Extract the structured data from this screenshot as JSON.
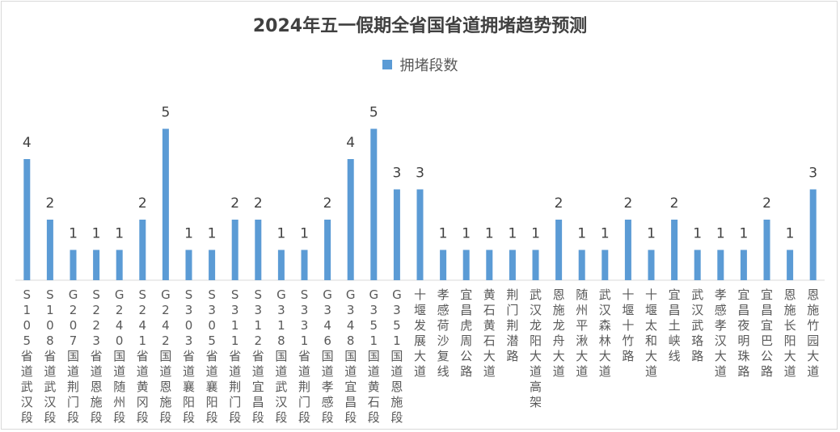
{
  "chart_data": {
    "type": "bar",
    "title": "2024年五一假期全省国省道拥堵趋势预测",
    "legend_position": "top",
    "grid": false,
    "ylim": [
      0,
      5.5
    ],
    "colors": {
      "bar": "#5b9bd5",
      "axis": "#d9d9d9",
      "label": "#404040",
      "tick": "#595959"
    },
    "categories": [
      "S105省道武汉段",
      "S108省道武汉段",
      "G207国道荆门段",
      "S223省道恩施段",
      "G240国道随州段",
      "S241省道黄冈段",
      "G242国道恩施段",
      "S303省道襄阳段",
      "S305省道襄阳段",
      "S311省道荆门段",
      "S312省道宜昌段",
      "G318国道武汉段",
      "S331省道荆门段",
      "G346国道孝感段",
      "G348国道宜昌段",
      "G351国道黄石段",
      "G351国道恩施段",
      "十堰发展大道",
      "孝感荷沙复线",
      "宜昌虎周公路",
      "黄石黄石大道",
      "荆门荆潜路",
      "武汉龙阳大道高架",
      "恩施龙舟大道",
      "随州平湫大道",
      "武汉森林大道",
      "十堰十竹路",
      "十堰太和大道",
      "宜昌土峡线",
      "武汉武珞路",
      "孝感孝汉大道",
      "宜昌夜明珠路",
      "宜昌宜巴公路",
      "恩施长阳大道",
      "恩施竹园大道"
    ],
    "series": [
      {
        "name": "拥堵段数",
        "values": [
          4,
          2,
          1,
          1,
          1,
          2,
          5,
          1,
          1,
          2,
          2,
          1,
          1,
          2,
          4,
          5,
          3,
          3,
          1,
          1,
          1,
          1,
          1,
          2,
          1,
          1,
          2,
          1,
          2,
          1,
          1,
          1,
          2,
          1,
          3
        ]
      }
    ]
  }
}
